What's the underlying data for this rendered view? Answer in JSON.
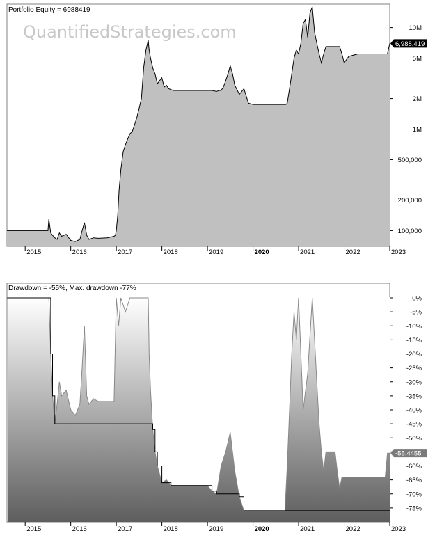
{
  "watermark": "QuantifiedStrategies.com",
  "chart_data": [
    {
      "type": "area",
      "title": "Portfolio Equity = 6988419",
      "yscale": "log",
      "ylim": [
        70000,
        17000000
      ],
      "xlim": [
        2014.6,
        2023.0
      ],
      "grid": false,
      "ytick_values": [
        100000,
        200000,
        500000,
        1000000,
        2000000,
        5000000,
        10000000
      ],
      "ytick_labels": [
        "100,000",
        "200,000",
        "500,000",
        "1M",
        "2M",
        "5M",
        "10M"
      ],
      "xtick_values": [
        2015,
        2016,
        2017,
        2018,
        2019,
        2020,
        2021,
        2022,
        2023
      ],
      "xtick_labels": [
        "2015",
        "2016",
        "2017",
        "2018",
        "2019",
        "2020",
        "2021",
        "2022",
        "2023"
      ],
      "last_value_label": "6,988,419",
      "last_value": 6988419,
      "series": [
        {
          "x": [
            2014.6,
            2015.5,
            2015.52,
            2015.56,
            2015.6,
            2015.65,
            2015.7,
            2015.75,
            2015.8,
            2015.9,
            2016.0,
            2016.1,
            2016.2,
            2016.25,
            2016.3,
            2016.35,
            2016.4,
            2016.5,
            2016.6,
            2016.8,
            2016.95,
            2016.98,
            2017.0,
            2017.03,
            2017.06,
            2017.1,
            2017.15,
            2017.2,
            2017.25,
            2017.3,
            2017.35,
            2017.4,
            2017.45,
            2017.5,
            2017.55,
            2017.6,
            2017.65,
            2017.7,
            2017.72,
            2017.75,
            2017.8,
            2017.85,
            2017.9,
            2017.95,
            2018.0,
            2018.05,
            2018.1,
            2018.15,
            2018.2,
            2018.25,
            2018.4,
            2018.6,
            2018.8,
            2019.0,
            2019.1,
            2019.2,
            2019.25,
            2019.3,
            2019.35,
            2019.4,
            2019.45,
            2019.5,
            2019.55,
            2019.6,
            2019.7,
            2019.8,
            2019.9,
            2020.0,
            2020.2,
            2020.4,
            2020.6,
            2020.7,
            2020.72,
            2020.75,
            2020.8,
            2020.85,
            2020.9,
            2020.95,
            2021.0,
            2021.05,
            2021.1,
            2021.15,
            2021.2,
            2021.25,
            2021.3,
            2021.35,
            2021.4,
            2021.45,
            2021.5,
            2021.55,
            2021.6,
            2021.7,
            2021.8,
            2021.9,
            2021.95,
            2022.0,
            2022.1,
            2022.3,
            2022.5,
            2022.7,
            2022.9,
            2022.95,
            2023.0
          ],
          "y": [
            100000,
            100000,
            130000,
            95000,
            90000,
            85000,
            82000,
            95000,
            88000,
            92000,
            80000,
            78000,
            82000,
            100000,
            120000,
            90000,
            82000,
            85000,
            84000,
            85000,
            88000,
            90000,
            100000,
            140000,
            250000,
            400000,
            600000,
            700000,
            800000,
            900000,
            950000,
            1100000,
            1300000,
            1600000,
            2000000,
            4000000,
            6000000,
            7500000,
            6000000,
            5000000,
            4000000,
            3500000,
            2800000,
            3000000,
            3200000,
            2600000,
            2700000,
            2500000,
            2450000,
            2400000,
            2400000,
            2400000,
            2400000,
            2400000,
            2400000,
            2350000,
            2400000,
            2400000,
            2600000,
            3000000,
            3500000,
            4200000,
            3500000,
            2700000,
            2200000,
            2500000,
            1800000,
            1750000,
            1750000,
            1750000,
            1750000,
            1750000,
            1750000,
            1800000,
            2500000,
            3500000,
            5000000,
            6000000,
            5500000,
            7000000,
            11000000,
            12000000,
            8000000,
            14000000,
            16000000,
            9000000,
            7000000,
            5500000,
            4500000,
            5500000,
            6500000,
            6500000,
            6500000,
            6500000,
            5500000,
            4500000,
            5200000,
            5500000,
            5500000,
            5500000,
            5500000,
            5500000,
            6988419
          ]
        }
      ]
    },
    {
      "type": "area",
      "title": "Drawdown = -55%, Max. drawdown -77%",
      "ylim": [
        -80,
        0
      ],
      "xlim": [
        2014.6,
        2023.0
      ],
      "grid": false,
      "ytick_values": [
        0,
        -5,
        -10,
        -15,
        -20,
        -25,
        -30,
        -35,
        -40,
        -45,
        -50,
        -55,
        -60,
        -65,
        -70,
        -75
      ],
      "ytick_labels": [
        "0%",
        "-5%",
        "-10%",
        "-15%",
        "-20%",
        "-25%",
        "-30%",
        "-35%",
        "-40%",
        "-45%",
        "-50%",
        "-55%",
        "-60%",
        "-65%",
        "-70%",
        "-75%"
      ],
      "xtick_values": [
        2015,
        2016,
        2017,
        2018,
        2019,
        2020,
        2021,
        2022,
        2023
      ],
      "xtick_labels": [
        "2015",
        "2016",
        "2017",
        "2018",
        "2019",
        "2020",
        "2021",
        "2022",
        "2023"
      ],
      "last_value_label": "-55.4455",
      "last_value": -55.4455,
      "series": [
        {
          "name": "Drawdown",
          "x": [
            2014.6,
            2015.5,
            2015.52,
            2015.56,
            2015.6,
            2015.65,
            2015.7,
            2015.75,
            2015.8,
            2015.9,
            2016.0,
            2016.1,
            2016.2,
            2016.25,
            2016.3,
            2016.35,
            2016.4,
            2016.5,
            2016.6,
            2016.8,
            2016.95,
            2017.0,
            2017.05,
            2017.1,
            2017.2,
            2017.3,
            2017.4,
            2017.5,
            2017.6,
            2017.7,
            2017.72,
            2017.75,
            2017.8,
            2017.85,
            2017.9,
            2018.0,
            2018.1,
            2018.2,
            2018.4,
            2018.6,
            2018.8,
            2019.0,
            2019.1,
            2019.2,
            2019.3,
            2019.4,
            2019.5,
            2019.55,
            2019.6,
            2019.7,
            2019.8,
            2020.0,
            2020.2,
            2020.4,
            2020.6,
            2020.7,
            2020.75,
            2020.8,
            2020.85,
            2020.9,
            2020.95,
            2021.0,
            2021.1,
            2021.2,
            2021.3,
            2021.35,
            2021.4,
            2021.45,
            2021.5,
            2021.55,
            2021.6,
            2021.7,
            2021.8,
            2021.85,
            2021.9,
            2021.95,
            2022.0,
            2022.3,
            2022.6,
            2022.9,
            2022.95,
            2023.0
          ],
          "y": [
            0,
            0,
            0,
            -20,
            -35,
            -45,
            -38,
            -30,
            -35,
            -33,
            -40,
            -42,
            -38,
            -25,
            -10,
            -35,
            -38,
            -36,
            -37,
            -37,
            -37,
            0,
            -10,
            0,
            -5,
            0,
            0,
            0,
            0,
            0,
            -20,
            -33,
            -47,
            -55,
            -60,
            -66,
            -65,
            -67,
            -67,
            -67,
            -67,
            -67,
            -69,
            -70,
            -60,
            -55,
            -48,
            -55,
            -62,
            -71,
            -76,
            -76,
            -76,
            -76,
            -76,
            -76,
            -60,
            -40,
            -20,
            -5,
            -15,
            0,
            -40,
            -27,
            0,
            -15,
            -30,
            -45,
            -55,
            -62,
            -55,
            -55,
            -55,
            -62,
            -68,
            -64,
            -64,
            -64,
            -64,
            -64,
            -55.4455,
            -55.4455
          ]
        }
      ]
    }
  ]
}
